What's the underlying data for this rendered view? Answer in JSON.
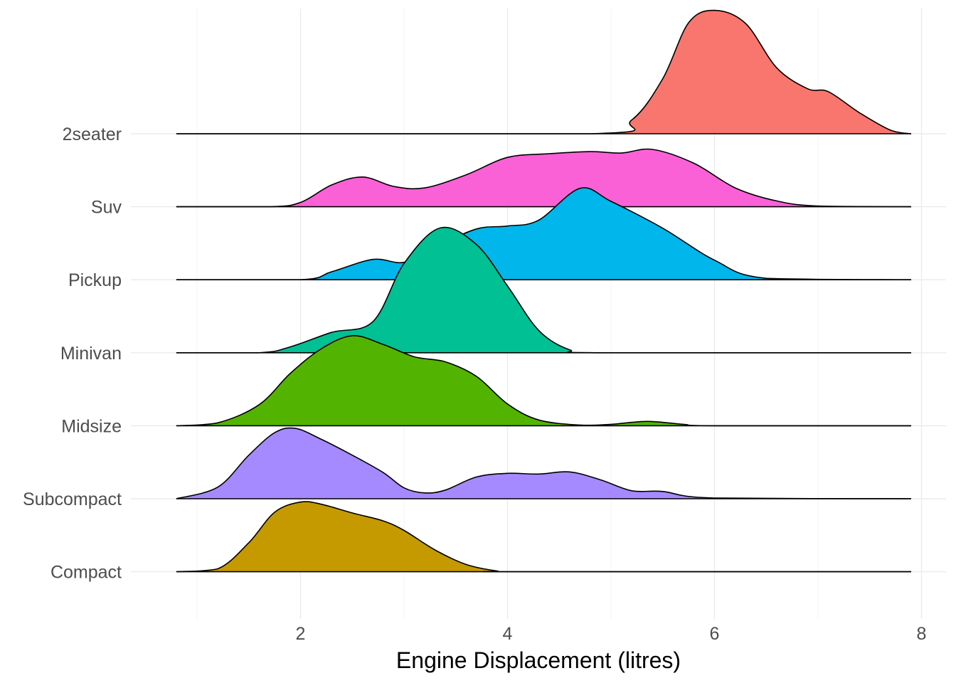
{
  "chart_data": {
    "type": "area",
    "subtype": "ridgeline-density",
    "title": "",
    "xlabel": "Engine Displacement (litres)",
    "ylabel": "",
    "xlim": [
      0.35,
      8.35
    ],
    "x_ticks": [
      2,
      4,
      6,
      8
    ],
    "x_range": [
      0.8,
      7.9
    ],
    "grid": true,
    "legend": "none",
    "series": [
      {
        "name": "Compact",
        "color": "#C49A00",
        "points": [
          [
            0.8,
            0
          ],
          [
            1.2,
            0.04
          ],
          [
            1.5,
            0.4
          ],
          [
            1.75,
            0.82
          ],
          [
            2.0,
            0.96
          ],
          [
            2.2,
            0.93
          ],
          [
            2.5,
            0.81
          ],
          [
            2.8,
            0.7
          ],
          [
            3.0,
            0.57
          ],
          [
            3.3,
            0.3
          ],
          [
            3.6,
            0.1
          ],
          [
            3.9,
            0.01
          ],
          [
            4.1,
            0
          ],
          [
            7.9,
            0
          ]
        ]
      },
      {
        "name": "Subcompact",
        "color": "#A58AFF",
        "points": [
          [
            0.8,
            0
          ],
          [
            1.2,
            0.16
          ],
          [
            1.5,
            0.6
          ],
          [
            1.75,
            0.91
          ],
          [
            1.95,
            0.97
          ],
          [
            2.2,
            0.82
          ],
          [
            2.5,
            0.6
          ],
          [
            2.8,
            0.36
          ],
          [
            3.0,
            0.15
          ],
          [
            3.2,
            0.08
          ],
          [
            3.4,
            0.12
          ],
          [
            3.7,
            0.3
          ],
          [
            4.0,
            0.35
          ],
          [
            4.3,
            0.34
          ],
          [
            4.6,
            0.37
          ],
          [
            4.9,
            0.26
          ],
          [
            5.2,
            0.11
          ],
          [
            5.5,
            0.1
          ],
          [
            6.0,
            0.01
          ],
          [
            7.9,
            0
          ]
        ]
      },
      {
        "name": "Midsize",
        "color": "#53B400",
        "points": [
          [
            0.8,
            0
          ],
          [
            1.2,
            0.04
          ],
          [
            1.6,
            0.29
          ],
          [
            1.9,
            0.72
          ],
          [
            2.2,
            1.06
          ],
          [
            2.5,
            1.24
          ],
          [
            2.8,
            1.12
          ],
          [
            3.1,
            0.95
          ],
          [
            3.4,
            0.88
          ],
          [
            3.7,
            0.68
          ],
          [
            4.0,
            0.3
          ],
          [
            4.3,
            0.08
          ],
          [
            4.7,
            0.01
          ],
          [
            5.0,
            0.02
          ],
          [
            5.35,
            0.06
          ],
          [
            5.7,
            0.02
          ],
          [
            6.0,
            0
          ],
          [
            7.9,
            0
          ]
        ]
      },
      {
        "name": "Minivan",
        "color": "#00C094",
        "points": [
          [
            0.8,
            0
          ],
          [
            1.6,
            0
          ],
          [
            1.9,
            0.08
          ],
          [
            2.3,
            0.28
          ],
          [
            2.7,
            0.43
          ],
          [
            3.0,
            1.23
          ],
          [
            3.35,
            1.72
          ],
          [
            3.7,
            1.49
          ],
          [
            4.0,
            0.92
          ],
          [
            4.3,
            0.31
          ],
          [
            4.6,
            0.04
          ],
          [
            4.9,
            0
          ],
          [
            7.9,
            0
          ]
        ]
      },
      {
        "name": "Pickup",
        "color": "#00B6EB",
        "points": [
          [
            0.8,
            0
          ],
          [
            2.0,
            0
          ],
          [
            2.3,
            0.11
          ],
          [
            2.7,
            0.28
          ],
          [
            3.0,
            0.24
          ],
          [
            3.3,
            0.45
          ],
          [
            3.7,
            0.7
          ],
          [
            4.0,
            0.74
          ],
          [
            4.3,
            0.82
          ],
          [
            4.7,
            1.26
          ],
          [
            5.0,
            1.08
          ],
          [
            5.5,
            0.71
          ],
          [
            6.0,
            0.27
          ],
          [
            6.5,
            0.02
          ],
          [
            7.9,
            0
          ]
        ]
      },
      {
        "name": "Suv",
        "color": "#FB61D7",
        "points": [
          [
            0.8,
            0
          ],
          [
            1.7,
            0
          ],
          [
            2.0,
            0.06
          ],
          [
            2.3,
            0.3
          ],
          [
            2.6,
            0.41
          ],
          [
            2.9,
            0.28
          ],
          [
            3.2,
            0.26
          ],
          [
            3.6,
            0.44
          ],
          [
            4.0,
            0.68
          ],
          [
            4.4,
            0.73
          ],
          [
            4.8,
            0.76
          ],
          [
            5.1,
            0.74
          ],
          [
            5.4,
            0.79
          ],
          [
            5.8,
            0.6
          ],
          [
            6.2,
            0.26
          ],
          [
            6.6,
            0.08
          ],
          [
            7.0,
            0.01
          ],
          [
            7.9,
            0
          ]
        ]
      },
      {
        "name": "2seater",
        "color": "#F8766D",
        "points": [
          [
            0.8,
            0
          ],
          [
            4.8,
            0
          ],
          [
            5.2,
            0.19
          ],
          [
            5.5,
            0.76
          ],
          [
            5.75,
            1.53
          ],
          [
            6.0,
            1.7
          ],
          [
            6.3,
            1.52
          ],
          [
            6.6,
            0.91
          ],
          [
            6.9,
            0.62
          ],
          [
            7.1,
            0.58
          ],
          [
            7.4,
            0.29
          ],
          [
            7.7,
            0.05
          ],
          [
            7.9,
            0
          ]
        ]
      }
    ]
  }
}
